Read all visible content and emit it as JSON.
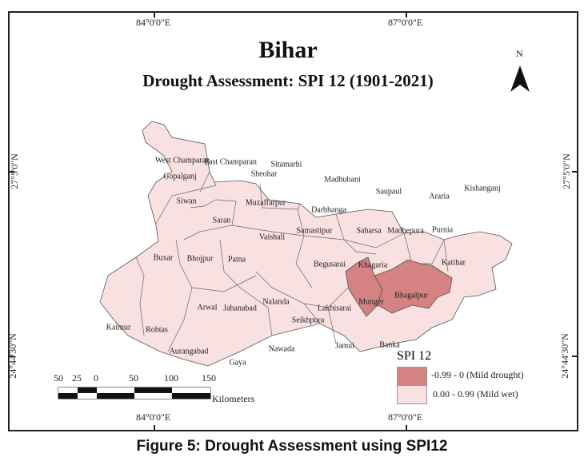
{
  "map": {
    "title": "Bihar",
    "subtitle": "Drought Assessment: SPI 12 (1901-2021)",
    "north_label": "N",
    "lon_labels": [
      "84°0'0\"E",
      "87°0'0\"E"
    ],
    "lat_labels": [
      "27°5'0\"N",
      "24°44'30\"N"
    ],
    "districts": [
      {
        "name": "West Champaran",
        "class": "mild_wet"
      },
      {
        "name": "East Champaran",
        "class": "mild_wet"
      },
      {
        "name": "Sitamarhi",
        "class": "mild_wet"
      },
      {
        "name": "Sheohar",
        "class": "mild_wet"
      },
      {
        "name": "Gopalganj",
        "class": "mild_wet"
      },
      {
        "name": "Madhubani",
        "class": "mild_wet"
      },
      {
        "name": "Saupaul",
        "class": "mild_wet"
      },
      {
        "name": "Araria",
        "class": "mild_wet"
      },
      {
        "name": "Kishanganj",
        "class": "mild_wet"
      },
      {
        "name": "Siwan",
        "class": "mild_wet"
      },
      {
        "name": "Muzaffarpur",
        "class": "mild_wet"
      },
      {
        "name": "Darbhanga",
        "class": "mild_wet"
      },
      {
        "name": "Saran",
        "class": "mild_wet"
      },
      {
        "name": "Vaishali",
        "class": "mild_wet"
      },
      {
        "name": "Samastipur",
        "class": "mild_wet"
      },
      {
        "name": "Saharsa",
        "class": "mild_wet"
      },
      {
        "name": "Madhepura",
        "class": "mild_wet"
      },
      {
        "name": "Purnia",
        "class": "mild_wet"
      },
      {
        "name": "Buxar",
        "class": "mild_wet"
      },
      {
        "name": "Bhojpur",
        "class": "mild_wet"
      },
      {
        "name": "Patna",
        "class": "mild_wet"
      },
      {
        "name": "Begusarai",
        "class": "mild_wet"
      },
      {
        "name": "Khagaria",
        "class": "mild_wet"
      },
      {
        "name": "Katihar",
        "class": "mild_wet"
      },
      {
        "name": "Bhagalpur",
        "class": "mild_drought"
      },
      {
        "name": "Munger",
        "class": "mild_drought"
      },
      {
        "name": "Arwal",
        "class": "mild_wet"
      },
      {
        "name": "Jahanabad",
        "class": "mild_wet"
      },
      {
        "name": "Nalanda",
        "class": "mild_wet"
      },
      {
        "name": "Lakhisarai",
        "class": "mild_wet"
      },
      {
        "name": "Seikhpura",
        "class": "mild_wet"
      },
      {
        "name": "Kaimur",
        "class": "mild_wet"
      },
      {
        "name": "Rohtas",
        "class": "mild_wet"
      },
      {
        "name": "Aurangabad",
        "class": "mild_wet"
      },
      {
        "name": "Gaya",
        "class": "mild_wet"
      },
      {
        "name": "Nawada",
        "class": "mild_wet"
      },
      {
        "name": "Jamui",
        "class": "mild_wet"
      },
      {
        "name": "Banka",
        "class": "mild_wet"
      }
    ]
  },
  "legend": {
    "title": "SPI 12",
    "items": [
      {
        "label": "-0.99 - 0 (Mild drought)",
        "color": "#d48282"
      },
      {
        "label": "0.00 - 0.99 (Mild wet)",
        "color": "#f9e1e1"
      }
    ]
  },
  "scalebar": {
    "ticks": [
      "50",
      "25",
      "0",
      "50",
      "100",
      "150"
    ],
    "unit": "Kilometers"
  },
  "caption": "Figure 5: Drought Assessment using SPI12"
}
